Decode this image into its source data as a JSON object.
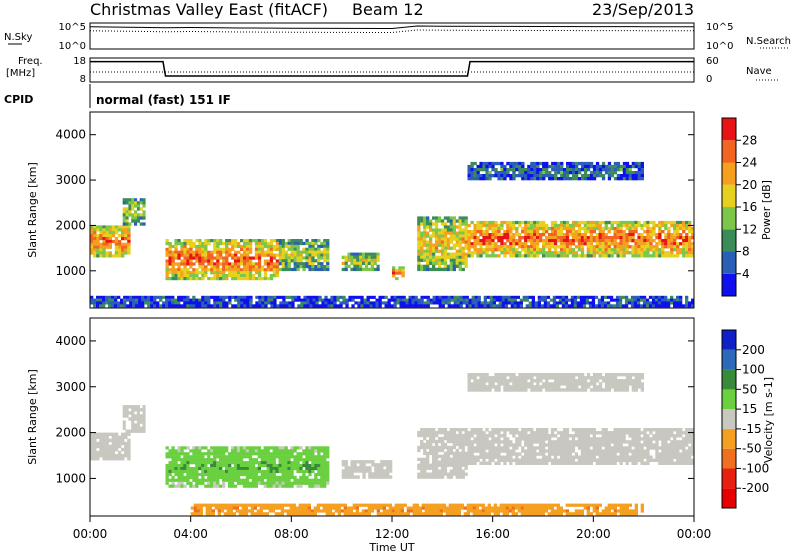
{
  "header": {
    "station": "Christmas Valley East (fitACF)",
    "beam": "Beam 12",
    "date": "23/Sep/2013"
  },
  "noise_panel": {
    "left_label": "N.Sky",
    "right_label": "N.Search",
    "left_ticks": [
      "10^5",
      "10^0"
    ],
    "right_ticks": [
      "10^5",
      "10^0"
    ]
  },
  "freq_panel": {
    "left_label_1": "Freq.",
    "left_label_2": "[MHz]",
    "right_label": "Nave",
    "left_ticks": [
      "18",
      "8"
    ],
    "right_ticks": [
      "60",
      "0"
    ]
  },
  "cpid": {
    "label": "CPID",
    "value": "normal (fast) 151 IF"
  },
  "power_panel": {
    "ylabel": "Slant Range [km]",
    "yticks": [
      "4000",
      "3000",
      "2000",
      "1000"
    ],
    "colorbar_label": "Power [dB]",
    "colorbar_ticks": [
      "28",
      "24",
      "20",
      "16",
      "12",
      "8",
      "4"
    ],
    "colors": [
      "#1010ee",
      "#2a5fb8",
      "#3c8c5a",
      "#7cc64a",
      "#e6d21e",
      "#f5a01e",
      "#f26422",
      "#e61414"
    ]
  },
  "velocity_panel": {
    "ylabel": "Slant Range [km]",
    "yticks": [
      "4000",
      "3000",
      "2000",
      "1000"
    ],
    "colorbar_label": "Velocity [m s-1]",
    "colorbar_ticks": [
      "200",
      "100",
      "50",
      "15",
      "-15",
      "-50",
      "-100",
      "-200"
    ],
    "colors": [
      "#1020c8",
      "#2a6ab8",
      "#3a8a3c",
      "#6ad040",
      "#c8c8c0",
      "#f5a020",
      "#f07020",
      "#e82010",
      "#e60000"
    ]
  },
  "xaxis": {
    "label": "Time UT",
    "ticks": [
      "00:00",
      "04:00",
      "08:00",
      "12:00",
      "16:00",
      "20:00",
      "00:00"
    ]
  },
  "chart_data": [
    {
      "type": "line",
      "title": "N.Sky / N.Search",
      "x": [
        0,
        2,
        3,
        4,
        6,
        8,
        10,
        12,
        13,
        14,
        16,
        18,
        20,
        22,
        24
      ],
      "series": [
        {
          "name": "N.Sky",
          "values": [
            40000,
            30000,
            25000,
            28000,
            22000,
            20000,
            18000,
            17000,
            60000,
            55000,
            50000,
            48000,
            45000,
            42000,
            40000
          ]
        }
      ],
      "ylim": [
        1,
        100000
      ]
    },
    {
      "type": "line",
      "title": "Freq. / Nave",
      "x": [
        0,
        2.9,
        3.0,
        15.0,
        15.1,
        24
      ],
      "series": [
        {
          "name": "Freq.",
          "values": [
            16.5,
            16.5,
            10.5,
            10.5,
            16.5,
            16.5
          ]
        }
      ],
      "ylim": [
        8,
        18
      ]
    },
    {
      "type": "heatmap",
      "title": "Power [dB]",
      "xlabel": "Time UT",
      "ylabel": "Slant Range [km]",
      "xlim": [
        0,
        24
      ],
      "ylim": [
        180,
        4500
      ],
      "zlim": [
        0,
        30
      ],
      "regions": [
        {
          "t0": 0.0,
          "t1": 1.6,
          "r0": 1300,
          "r1": 2000,
          "p": 26
        },
        {
          "t0": 1.3,
          "t1": 2.2,
          "r0": 2000,
          "r1": 2600,
          "p": 16
        },
        {
          "t0": 3.0,
          "t1": 7.5,
          "r0": 800,
          "r1": 1700,
          "p": 26
        },
        {
          "t0": 7.5,
          "t1": 9.5,
          "r0": 1000,
          "r1": 1700,
          "p": 16
        },
        {
          "t0": 10.0,
          "t1": 11.5,
          "r0": 1000,
          "r1": 1400,
          "p": 18
        },
        {
          "t0": 12.0,
          "t1": 12.5,
          "r0": 800,
          "r1": 1100,
          "p": 26
        },
        {
          "t0": 13.0,
          "t1": 15.0,
          "r0": 1000,
          "r1": 2200,
          "p": 20
        },
        {
          "t0": 15.0,
          "t1": 24.0,
          "r0": 1300,
          "r1": 2100,
          "p": 26
        },
        {
          "t0": 15.0,
          "t1": 22.0,
          "r0": 3000,
          "r1": 3400,
          "p": 8
        },
        {
          "t0": 0.0,
          "t1": 24.0,
          "r0": 200,
          "r1": 450,
          "p": 6
        }
      ]
    },
    {
      "type": "heatmap",
      "title": "Velocity [m s-1]",
      "xlabel": "Time UT",
      "ylabel": "Slant Range [km]",
      "xlim": [
        0,
        24
      ],
      "ylim": [
        180,
        4500
      ],
      "zlim": [
        -200,
        200
      ],
      "regions": [
        {
          "t0": 0.0,
          "t1": 1.6,
          "r0": 1400,
          "r1": 2000,
          "v": 0
        },
        {
          "t0": 1.3,
          "t1": 2.2,
          "r0": 2000,
          "r1": 2600,
          "v": 0
        },
        {
          "t0": 3.0,
          "t1": 9.5,
          "r0": 800,
          "r1": 1700,
          "v": 30
        },
        {
          "t0": 10.0,
          "t1": 12.0,
          "r0": 1000,
          "r1": 1400,
          "v": 0
        },
        {
          "t0": 13.0,
          "t1": 15.0,
          "r0": 1000,
          "r1": 2100,
          "v": 0
        },
        {
          "t0": 15.0,
          "t1": 24.0,
          "r0": 1300,
          "r1": 2100,
          "v": 0
        },
        {
          "t0": 15.0,
          "t1": 22.0,
          "r0": 2900,
          "r1": 3300,
          "v": 0
        },
        {
          "t0": 4.0,
          "t1": 22.0,
          "r0": 200,
          "r1": 450,
          "v": -60
        }
      ]
    }
  ]
}
